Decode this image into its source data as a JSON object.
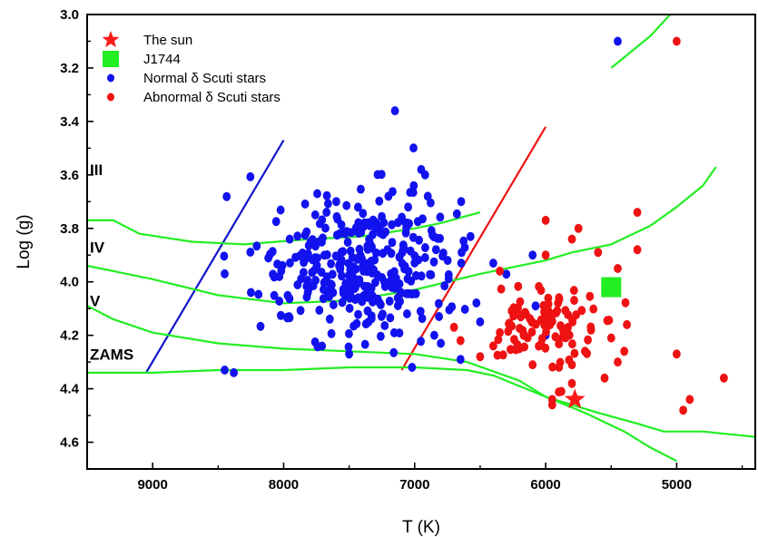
{
  "chart_data": {
    "type": "scatter",
    "xlabel": "T (K)",
    "ylabel": "Log (g)",
    "xlim": [
      9500,
      4400
    ],
    "ylim": [
      3.0,
      4.7
    ],
    "x_reversed": true,
    "y_reversed": true,
    "x_ticks": [
      9000,
      8000,
      7000,
      6000,
      5000
    ],
    "y_ticks": [
      3.0,
      3.2,
      3.4,
      3.6,
      3.8,
      4.0,
      4.2,
      4.4,
      4.6
    ],
    "x_tick_labels": [
      "9000",
      "8000",
      "7000",
      "6000",
      "5000"
    ],
    "y_tick_labels": [
      "3.0",
      "3.2",
      "3.4",
      "3.6",
      "3.8",
      "4.0",
      "4.2",
      "4.4",
      "4.6"
    ],
    "legend_position": "top-left",
    "legend": [
      {
        "label": "The sun",
        "marker": "star",
        "color": "#ff1a1a"
      },
      {
        "label": "J1744",
        "marker": "square",
        "color": "#22ee22"
      },
      {
        "label": "Normal δ Scuti stars",
        "marker": "circle",
        "color": "#1212ee"
      },
      {
        "label": "Abnormal δ Scuti stars",
        "marker": "circle",
        "color": "#ee1212"
      }
    ],
    "class_labels": [
      {
        "text": "III",
        "logg": 3.58
      },
      {
        "text": "IV",
        "logg": 3.87
      },
      {
        "text": "V",
        "logg": 4.07
      },
      {
        "text": "ZAMS",
        "logg": 4.27
      }
    ],
    "series": [
      {
        "name": "The sun",
        "marker": "star",
        "color": "#ff1a1a",
        "points": [
          [
            5777,
            4.44
          ]
        ]
      },
      {
        "name": "J1744",
        "marker": "square",
        "color": "#22ee22",
        "points": [
          [
            5500,
            4.02
          ]
        ]
      },
      {
        "name": "Normal δ Scuti stars",
        "marker": "circle",
        "color": "#1212ee",
        "cluster": {
          "center": [
            7400,
            3.94
          ],
          "spread": [
            380,
            0.13
          ],
          "count": 330
        },
        "points": [
          [
            7150,
            3.36
          ],
          [
            6950,
            3.58
          ],
          [
            6920,
            3.6
          ],
          [
            6900,
            3.68
          ],
          [
            7200,
            3.68
          ],
          [
            7050,
            3.72
          ],
          [
            8450,
            3.97
          ],
          [
            8250,
            4.04
          ],
          [
            8450,
            4.33
          ],
          [
            8380,
            4.34
          ],
          [
            7020,
            4.32
          ],
          [
            6850,
            4.2
          ],
          [
            6800,
            4.23
          ],
          [
            6650,
            4.29
          ],
          [
            6000,
            4.2
          ],
          [
            6100,
            3.9
          ],
          [
            6400,
            3.93
          ],
          [
            5450,
            3.1
          ],
          [
            6500,
            4.15
          ],
          [
            7500,
            4.27
          ]
        ]
      },
      {
        "name": "Abnormal δ Scuti stars",
        "marker": "circle",
        "color": "#ee1212",
        "cluster": {
          "center": [
            6000,
            4.15
          ],
          "spread": [
            230,
            0.08
          ],
          "count": 95
        },
        "points": [
          [
            5000,
            3.1
          ],
          [
            6000,
            3.77
          ],
          [
            5600,
            3.89
          ],
          [
            5750,
            3.8
          ],
          [
            5800,
            3.84
          ],
          [
            5300,
            3.74
          ],
          [
            5450,
            3.95
          ],
          [
            5300,
            3.88
          ],
          [
            6350,
            3.96
          ],
          [
            6000,
            3.9
          ],
          [
            5500,
            4.21
          ],
          [
            5380,
            4.16
          ],
          [
            5000,
            4.27
          ],
          [
            5400,
            4.26
          ],
          [
            4950,
            4.48
          ],
          [
            4900,
            4.44
          ],
          [
            4640,
            4.36
          ],
          [
            5800,
            4.31
          ],
          [
            5800,
            4.38
          ],
          [
            5450,
            4.3
          ],
          [
            5550,
            4.36
          ],
          [
            5950,
            4.44
          ],
          [
            5950,
            4.46
          ],
          [
            6100,
            4.31
          ],
          [
            6700,
            4.17
          ],
          [
            6650,
            4.22
          ],
          [
            6500,
            4.28
          ],
          [
            6400,
            4.24
          ],
          [
            6350,
            4.19
          ],
          [
            5880,
            4.41
          ],
          [
            6200,
            4.25
          ],
          [
            5700,
            4.26
          ]
        ]
      }
    ],
    "lines": [
      {
        "name": "blue-edge",
        "color": "#1212cc",
        "points": [
          [
            9050,
            4.34
          ],
          [
            8000,
            3.47
          ]
        ]
      },
      {
        "name": "red-edge",
        "color": "#ee1212",
        "points": [
          [
            7100,
            4.33
          ],
          [
            6000,
            3.42
          ]
        ]
      },
      {
        "name": "III",
        "color": "#22ee22",
        "points": [
          [
            5500,
            3.2
          ],
          [
            5200,
            3.08
          ],
          [
            5050,
            3.0
          ]
        ]
      },
      {
        "name": "IV",
        "color": "#22ee22",
        "points": [
          [
            9500,
            3.77
          ],
          [
            9300,
            3.77
          ],
          [
            9100,
            3.82
          ],
          [
            8700,
            3.85
          ],
          [
            8300,
            3.86
          ],
          [
            7800,
            3.84
          ],
          [
            7400,
            3.83
          ],
          [
            7000,
            3.8
          ],
          [
            6800,
            3.78
          ],
          [
            6500,
            3.74
          ]
        ]
      },
      {
        "name": "V",
        "color": "#22ee22",
        "points": [
          [
            9500,
            3.94
          ],
          [
            9000,
            3.99
          ],
          [
            8500,
            4.05
          ],
          [
            8000,
            4.08
          ],
          [
            7500,
            4.07
          ],
          [
            7000,
            4.03
          ],
          [
            6500,
            3.97
          ],
          [
            6000,
            3.92
          ],
          [
            5800,
            3.89
          ],
          [
            5500,
            3.86
          ],
          [
            5200,
            3.79
          ],
          [
            5000,
            3.72
          ],
          [
            4800,
            3.64
          ],
          [
            4700,
            3.57
          ]
        ]
      },
      {
        "name": "ZAMS-upper",
        "color": "#22ee22",
        "points": [
          [
            9500,
            4.09
          ],
          [
            9300,
            4.14
          ],
          [
            9000,
            4.19
          ],
          [
            8500,
            4.23
          ],
          [
            8000,
            4.25
          ],
          [
            7500,
            4.26
          ],
          [
            7000,
            4.27
          ],
          [
            6600,
            4.3
          ],
          [
            6200,
            4.37
          ],
          [
            6000,
            4.43
          ],
          [
            5700,
            4.49
          ],
          [
            5400,
            4.56
          ],
          [
            5200,
            4.62
          ],
          [
            5000,
            4.67
          ]
        ]
      },
      {
        "name": "ZAMS-lower",
        "color": "#22ee22",
        "points": [
          [
            9500,
            4.34
          ],
          [
            9000,
            4.34
          ],
          [
            8500,
            4.33
          ],
          [
            8000,
            4.33
          ],
          [
            7500,
            4.32
          ],
          [
            7000,
            4.32
          ],
          [
            6600,
            4.33
          ],
          [
            6400,
            4.35
          ],
          [
            6200,
            4.39
          ],
          [
            6000,
            4.43
          ],
          [
            5800,
            4.46
          ],
          [
            5600,
            4.49
          ],
          [
            5300,
            4.53
          ],
          [
            5100,
            4.56
          ],
          [
            4950,
            4.56
          ],
          [
            4800,
            4.56
          ],
          [
            4600,
            4.57
          ],
          [
            4400,
            4.58
          ]
        ]
      }
    ]
  }
}
